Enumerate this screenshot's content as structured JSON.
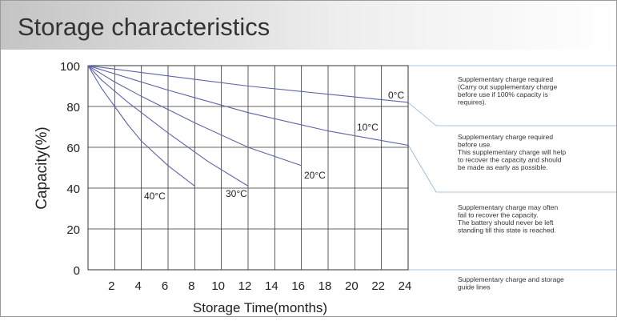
{
  "chart_data": {
    "type": "line",
    "title": "Storage characteristics",
    "xlabel": "Storage Time(months)",
    "ylabel": "Capacity(%)",
    "xlim": [
      0,
      24
    ],
    "xticks": [
      2,
      4,
      6,
      8,
      10,
      12,
      14,
      16,
      18,
      20,
      22,
      24
    ],
    "ylim": [
      0,
      100
    ],
    "yticks": [
      0,
      20,
      40,
      60,
      80,
      100
    ],
    "grid": true,
    "series": [
      {
        "name": "0°C",
        "color": "#5a64a8",
        "x": [
          0,
          6,
          12,
          18,
          24
        ],
        "values": [
          100,
          95,
          90,
          86,
          82
        ]
      },
      {
        "name": "10°C",
        "color": "#5a64a8",
        "x": [
          0,
          3,
          6,
          12,
          18,
          24
        ],
        "values": [
          100,
          94,
          88,
          77,
          68,
          61
        ]
      },
      {
        "name": "20°C",
        "color": "#5a64a8",
        "x": [
          0,
          2,
          4,
          8,
          12,
          16
        ],
        "values": [
          100,
          92,
          85,
          72,
          60,
          51
        ]
      },
      {
        "name": "30°C",
        "color": "#5a64a8",
        "x": [
          0,
          1,
          3,
          6,
          9,
          12
        ],
        "values": [
          100,
          93,
          82,
          67,
          53,
          41
        ]
      },
      {
        "name": "40°C",
        "color": "#5a64a8",
        "x": [
          0,
          1,
          2,
          3,
          4,
          6,
          8
        ],
        "values": [
          100,
          89,
          80,
          71,
          63,
          51,
          41
        ]
      }
    ],
    "notes": [
      {
        "lines": [
          "Supplementary charge required",
          "(Carry out supplementary charge",
          "before use if 100% capacity is",
          "requires)."
        ]
      },
      {
        "lines": [
          "Supplementary charge required",
          "before use.",
          "This supplementary charge will help",
          "to recover the capacity and should",
          "be made as early as possible."
        ]
      },
      {
        "lines": [
          "Supplementary charge may often",
          "fail to recover the capacity.",
          "The battery should never be left",
          "standing till this state is reached."
        ]
      },
      {
        "lines": [
          "Supplementary charge and storage",
          "guide lines"
        ]
      }
    ]
  }
}
